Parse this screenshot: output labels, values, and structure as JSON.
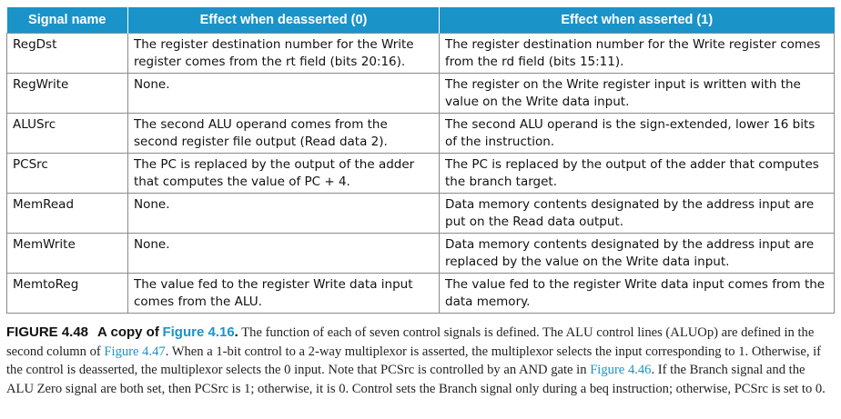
{
  "table": {
    "headers": [
      "Signal name",
      "Effect when deasserted (0)",
      "Effect when asserted (1)"
    ],
    "rows": [
      {
        "signal": "RegDst",
        "deasserted": "The register destination number for the Write register comes from the rt field (bits 20:16).",
        "asserted": "The register destination number for the Write register comes from the rd field (bits 15:11)."
      },
      {
        "signal": "RegWrite",
        "deasserted": "None.",
        "asserted": "The register on the Write register input is written with the value on the Write data input."
      },
      {
        "signal": "ALUSrc",
        "deasserted": "The second ALU operand comes from the second register file output (Read data 2).",
        "asserted": "The second ALU operand is the sign-extended, lower 16 bits of the instruction."
      },
      {
        "signal": "PCSrc",
        "deasserted": "The PC is replaced by the output of the adder that computes the value of PC + 4.",
        "asserted": "The PC is replaced by the output of the adder that computes the branch target."
      },
      {
        "signal": "MemRead",
        "deasserted": "None.",
        "asserted": "Data memory contents designated by the address input are put on the Read data output."
      },
      {
        "signal": "MemWrite",
        "deasserted": "None.",
        "asserted": "Data memory contents designated by the address input are replaced by the value on the Write data input."
      },
      {
        "signal": "MemtoReg",
        "deasserted": "The value fed to the register Write data input comes from the ALU.",
        "asserted": "The value fed to the register Write data input comes from the data memory."
      }
    ]
  },
  "caption": {
    "figure_label": "FIGURE 4.48",
    "title_prefix": "A copy of",
    "title_link": "Figure 4.16",
    "title_suffix": ".",
    "text_1": " The function of each of seven control signals is defined. The ALU control lines (ALUOp) are defined in the second column of ",
    "link_1": "Figure 4.47",
    "text_2": ". When a 1-bit control to a 2-way multiplexor is asserted, the multiplexor selects the input corresponding to 1. Otherwise, if the control is deasserted, the multiplexor selects the 0 input. Note that PCSrc is controlled by an AND gate in ",
    "link_2": "Figure 4.46",
    "text_3": ". If the Branch signal and the ALU Zero signal are both set, then PCSrc is 1; otherwise, it is 0. Control sets the Branch signal only during a beq instruction; otherwise, PCSrc is set to 0."
  },
  "colors": {
    "header_bg": "#1a93c9",
    "link": "#1a93c9"
  }
}
